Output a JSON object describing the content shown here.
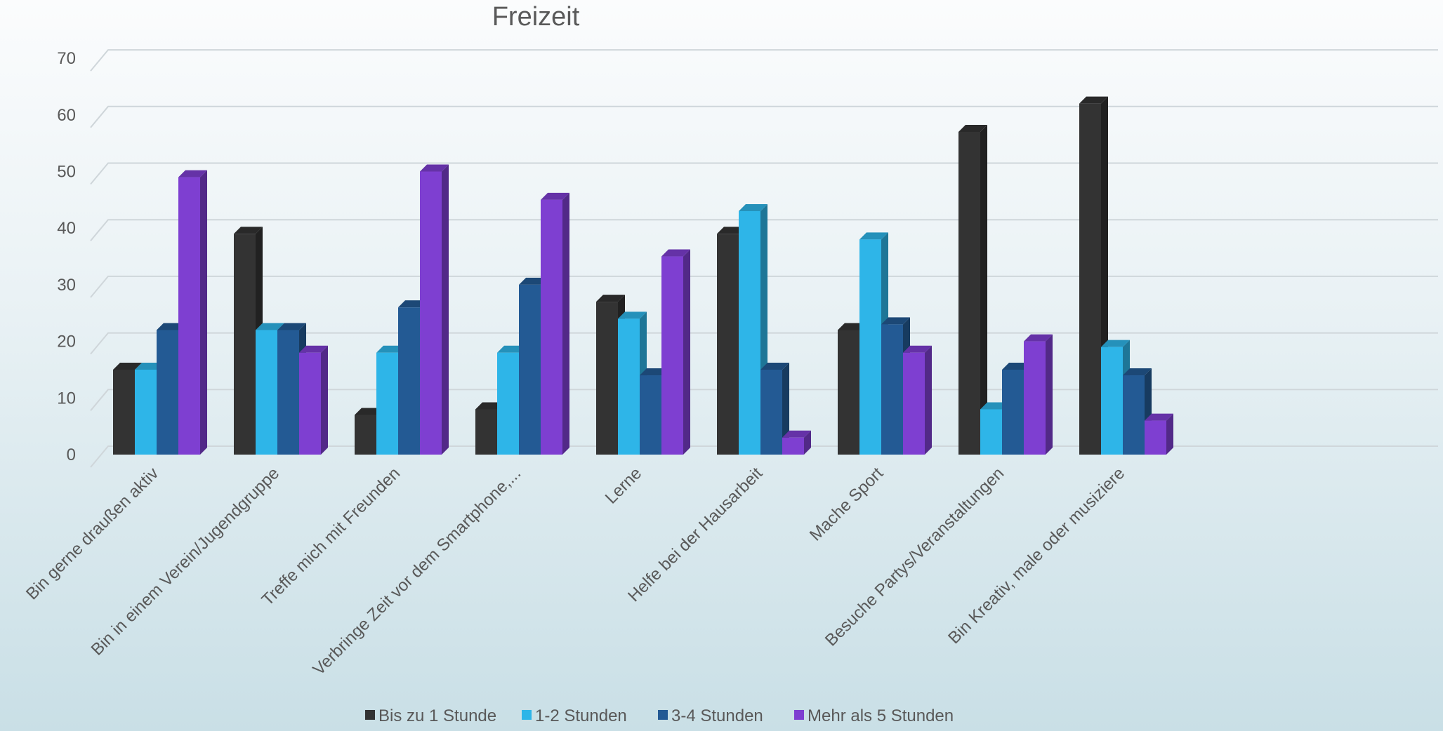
{
  "chart_data": {
    "type": "bar",
    "title": "Freizeit",
    "categories": [
      "Bin gerne draußen aktiv",
      "Bin in einem Verein/Jugendgruppe",
      "Treffe mich mit Freunden",
      "Verbringe Zeit vor dem Smartphone,...",
      "Lerne",
      "Helfe bei der Hausarbeit",
      "Mache Sport",
      "Besuche Partys/Veranstaltungen",
      "Bin Kreativ, male oder musiziere"
    ],
    "series": [
      {
        "name": "Bis zu 1 Stunde",
        "color": "#333333",
        "values": [
          15,
          39,
          7,
          8,
          27,
          39,
          22,
          57,
          62
        ]
      },
      {
        "name": "1-2 Stunden",
        "color": "#2eb5e8",
        "values": [
          15,
          22,
          18,
          18,
          24,
          43,
          38,
          8,
          19
        ]
      },
      {
        "name": "3-4 Stunden",
        "color": "#235a94",
        "values": [
          22,
          22,
          26,
          30,
          14,
          15,
          23,
          15,
          14
        ]
      },
      {
        "name": "Mehr als 5 Stunden",
        "color": "#7e3fd1",
        "values": [
          49,
          18,
          50,
          45,
          35,
          3,
          18,
          20,
          6
        ]
      }
    ],
    "ylim": [
      0,
      70
    ],
    "yticks": [
      0,
      10,
      20,
      30,
      40,
      50,
      60,
      70
    ],
    "grid": true,
    "legend_position": "bottom"
  }
}
